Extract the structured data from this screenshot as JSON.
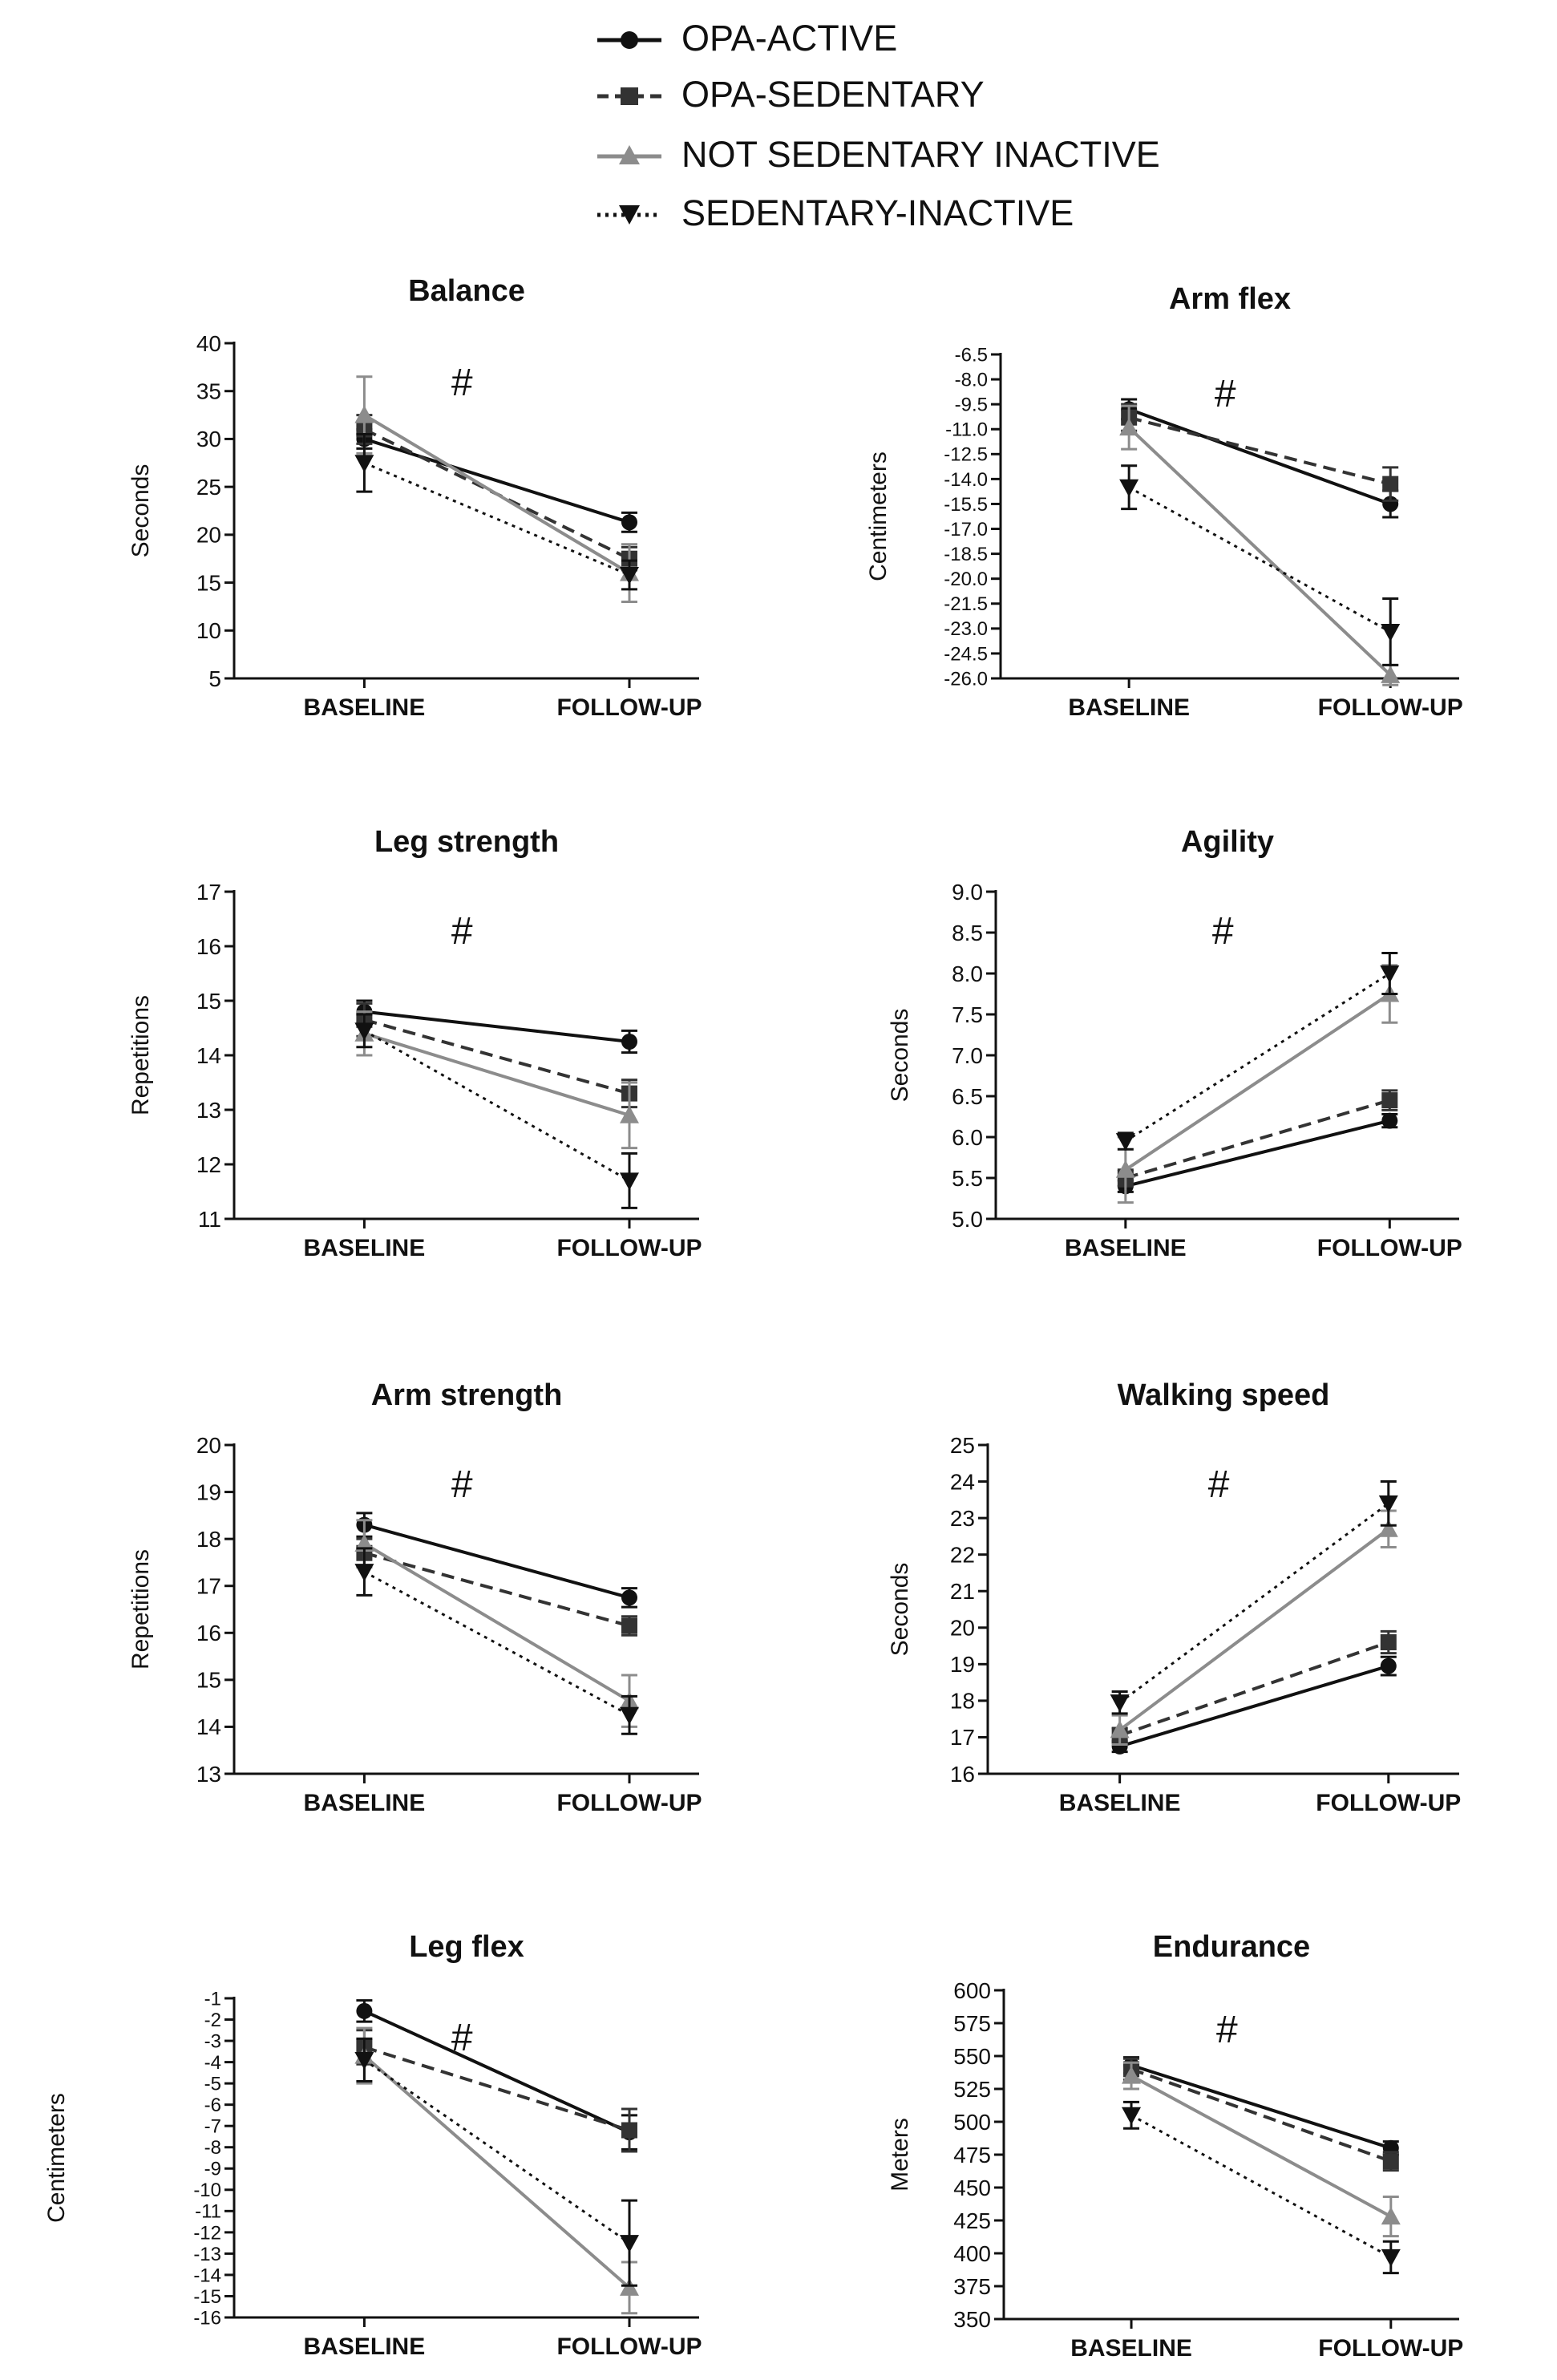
{
  "legend": [
    {
      "label": "OPA-ACTIVE",
      "color": "#111111",
      "dash": "solid",
      "marker": "circle"
    },
    {
      "label": "OPA-SEDENTARY",
      "color": "#333333",
      "dash": "dashed",
      "marker": "square"
    },
    {
      "label": "NOT SEDENTARY INACTIVE",
      "color": "#8c8c8c",
      "dash": "solid",
      "marker": "triangle-up"
    },
    {
      "label": "SEDENTARY-INACTIVE",
      "color": "#111111",
      "dash": "dotted",
      "marker": "triangle-down"
    }
  ],
  "chart_data": [
    {
      "type": "line",
      "title": "Balance",
      "ylabel": "Seconds",
      "categories": [
        "BASELINE",
        "FOLLOW-UP"
      ],
      "ylim": [
        5,
        40
      ],
      "yticks": [
        "5",
        "10",
        "15",
        "20",
        "25",
        "30",
        "35",
        "40"
      ],
      "annotation": "#",
      "series": [
        {
          "name": "OPA-ACTIVE",
          "values": [
            30.0,
            21.3
          ],
          "errors": [
            1.0,
            1.0
          ]
        },
        {
          "name": "OPA-SEDENTARY",
          "values": [
            31.0,
            17.5
          ],
          "errors": [
            1.5,
            1.2
          ]
        },
        {
          "name": "NOT SEDENTARY INACTIVE",
          "values": [
            32.5,
            16.0
          ],
          "errors": [
            4.0,
            3.0
          ]
        },
        {
          "name": "SEDENTARY-INACTIVE",
          "values": [
            27.5,
            15.8
          ],
          "errors": [
            3.0,
            1.5
          ]
        }
      ]
    },
    {
      "type": "line",
      "title": "Arm flex",
      "ylabel": "Centimeters",
      "categories": [
        "BASELINE",
        "FOLLOW-UP"
      ],
      "ylim": [
        -26.0,
        -6.5
      ],
      "yticks": [
        "-6.5",
        "-8.0",
        "-9.5",
        "-11.0",
        "-12.5",
        "-14.0",
        "-15.5",
        "-17.0",
        "-18.5",
        "-20.0",
        "-21.5",
        "-23.0",
        "-24.5",
        "-26.0"
      ],
      "annotation": "#",
      "series": [
        {
          "name": "OPA-ACTIVE",
          "values": [
            -9.8,
            -15.5
          ],
          "errors": [
            0.6,
            0.8
          ]
        },
        {
          "name": "OPA-SEDENTARY",
          "values": [
            -10.3,
            -14.3
          ],
          "errors": [
            0.8,
            1.0
          ]
        },
        {
          "name": "NOT SEDENTARY INACTIVE",
          "values": [
            -10.9,
            -25.8
          ],
          "errors": [
            1.3,
            0.6
          ]
        },
        {
          "name": "SEDENTARY-INACTIVE",
          "values": [
            -14.5,
            -23.2
          ],
          "errors": [
            1.3,
            2.0
          ]
        }
      ]
    },
    {
      "type": "line",
      "title": "Leg strength",
      "ylabel": "Repetitions",
      "categories": [
        "BASELINE",
        "FOLLOW-UP"
      ],
      "ylim": [
        11,
        17
      ],
      "yticks": [
        "11",
        "12",
        "13",
        "14",
        "15",
        "16",
        "17"
      ],
      "annotation": "#",
      "series": [
        {
          "name": "OPA-ACTIVE",
          "values": [
            14.8,
            14.25
          ],
          "errors": [
            0.2,
            0.2
          ]
        },
        {
          "name": "OPA-SEDENTARY",
          "values": [
            14.65,
            13.3
          ],
          "errors": [
            0.3,
            0.25
          ]
        },
        {
          "name": "NOT SEDENTARY INACTIVE",
          "values": [
            14.4,
            12.9
          ],
          "errors": [
            0.4,
            0.6
          ]
        },
        {
          "name": "SEDENTARY-INACTIVE",
          "values": [
            14.45,
            11.7
          ],
          "errors": [
            0.3,
            0.5
          ]
        }
      ]
    },
    {
      "type": "line",
      "title": "Agility",
      "ylabel": "Seconds",
      "categories": [
        "BASELINE",
        "FOLLOW-UP"
      ],
      "ylim": [
        5.0,
        9.0
      ],
      "yticks": [
        "5.0",
        "5.5",
        "6.0",
        "6.5",
        "7.0",
        "7.5",
        "8.0",
        "8.5",
        "9.0"
      ],
      "annotation": "#",
      "series": [
        {
          "name": "OPA-ACTIVE",
          "values": [
            5.4,
            6.2
          ],
          "errors": [
            0.07,
            0.08
          ]
        },
        {
          "name": "OPA-SEDENTARY",
          "values": [
            5.5,
            6.45
          ],
          "errors": [
            0.1,
            0.12
          ]
        },
        {
          "name": "NOT SEDENTARY INACTIVE",
          "values": [
            5.6,
            7.75
          ],
          "errors": [
            0.4,
            0.35
          ]
        },
        {
          "name": "SEDENTARY-INACTIVE",
          "values": [
            5.95,
            8.0
          ],
          "errors": [
            0.1,
            0.25
          ]
        }
      ]
    },
    {
      "type": "line",
      "title": "Arm strength",
      "ylabel": "Repetitions",
      "categories": [
        "BASELINE",
        "FOLLOW-UP"
      ],
      "ylim": [
        13,
        20
      ],
      "yticks": [
        "13",
        "14",
        "15",
        "16",
        "17",
        "18",
        "19",
        "20"
      ],
      "annotation": "#",
      "series": [
        {
          "name": "OPA-ACTIVE",
          "values": [
            18.3,
            16.75
          ],
          "errors": [
            0.25,
            0.2
          ]
        },
        {
          "name": "OPA-SEDENTARY",
          "values": [
            17.7,
            16.15
          ],
          "errors": [
            0.3,
            0.2
          ]
        },
        {
          "name": "NOT SEDENTARY INACTIVE",
          "values": [
            17.9,
            14.55
          ],
          "errors": [
            0.5,
            0.55
          ]
        },
        {
          "name": "SEDENTARY-INACTIVE",
          "values": [
            17.3,
            14.25
          ],
          "errors": [
            0.5,
            0.4
          ]
        }
      ]
    },
    {
      "type": "line",
      "title": "Walking speed",
      "ylabel": "Seconds",
      "categories": [
        "BASELINE",
        "FOLLOW-UP"
      ],
      "ylim": [
        16,
        25
      ],
      "yticks": [
        "16",
        "17",
        "18",
        "19",
        "20",
        "21",
        "22",
        "23",
        "24",
        "25"
      ],
      "annotation": "#",
      "series": [
        {
          "name": "OPA-ACTIVE",
          "values": [
            16.75,
            18.95
          ],
          "errors": [
            0.15,
            0.25
          ]
        },
        {
          "name": "OPA-SEDENTARY",
          "values": [
            17.05,
            19.6
          ],
          "errors": [
            0.2,
            0.3
          ]
        },
        {
          "name": "NOT SEDENTARY INACTIVE",
          "values": [
            17.2,
            22.7
          ],
          "errors": [
            0.4,
            0.5
          ]
        },
        {
          "name": "SEDENTARY-INACTIVE",
          "values": [
            17.95,
            23.4
          ],
          "errors": [
            0.3,
            0.6
          ]
        }
      ]
    },
    {
      "type": "line",
      "title": "Leg flex",
      "ylabel": "Centimeters",
      "categories": [
        "BASELINE",
        "FOLLOW-UP"
      ],
      "ylim": [
        -16,
        -1
      ],
      "yticks": [
        "-1",
        "-2",
        "-3",
        "-4",
        "-5",
        "-6",
        "-7",
        "-8",
        "-9",
        "-10",
        "-11",
        "-12",
        "-13",
        "-14",
        "-15",
        "-16"
      ],
      "annotation": "#",
      "series": [
        {
          "name": "OPA-ACTIVE",
          "values": [
            -1.6,
            -7.3
          ],
          "errors": [
            0.5,
            0.8
          ]
        },
        {
          "name": "OPA-SEDENTARY",
          "values": [
            -3.3,
            -7.2
          ],
          "errors": [
            0.8,
            1.0
          ]
        },
        {
          "name": "NOT SEDENTARY INACTIVE",
          "values": [
            -3.7,
            -14.6
          ],
          "errors": [
            1.3,
            1.2
          ]
        },
        {
          "name": "SEDENTARY-INACTIVE",
          "values": [
            -3.9,
            -12.5
          ],
          "errors": [
            1.0,
            2.0
          ]
        }
      ]
    },
    {
      "type": "line",
      "title": "Endurance",
      "ylabel": "Meters",
      "categories": [
        "BASELINE",
        "FOLLOW-UP"
      ],
      "ylim": [
        350,
        600
      ],
      "yticks": [
        "350",
        "375",
        "400",
        "425",
        "450",
        "475",
        "500",
        "525",
        "550",
        "575",
        "600"
      ],
      "annotation": "#",
      "series": [
        {
          "name": "OPA-ACTIVE",
          "values": [
            543,
            480
          ],
          "errors": [
            6,
            5
          ]
        },
        {
          "name": "OPA-SEDENTARY",
          "values": [
            540,
            470
          ],
          "errors": [
            8,
            7
          ]
        },
        {
          "name": "NOT SEDENTARY INACTIVE",
          "values": [
            535,
            428
          ],
          "errors": [
            10,
            15
          ]
        },
        {
          "name": "SEDENTARY-INACTIVE",
          "values": [
            505,
            397
          ],
          "errors": [
            10,
            12
          ]
        }
      ]
    }
  ]
}
